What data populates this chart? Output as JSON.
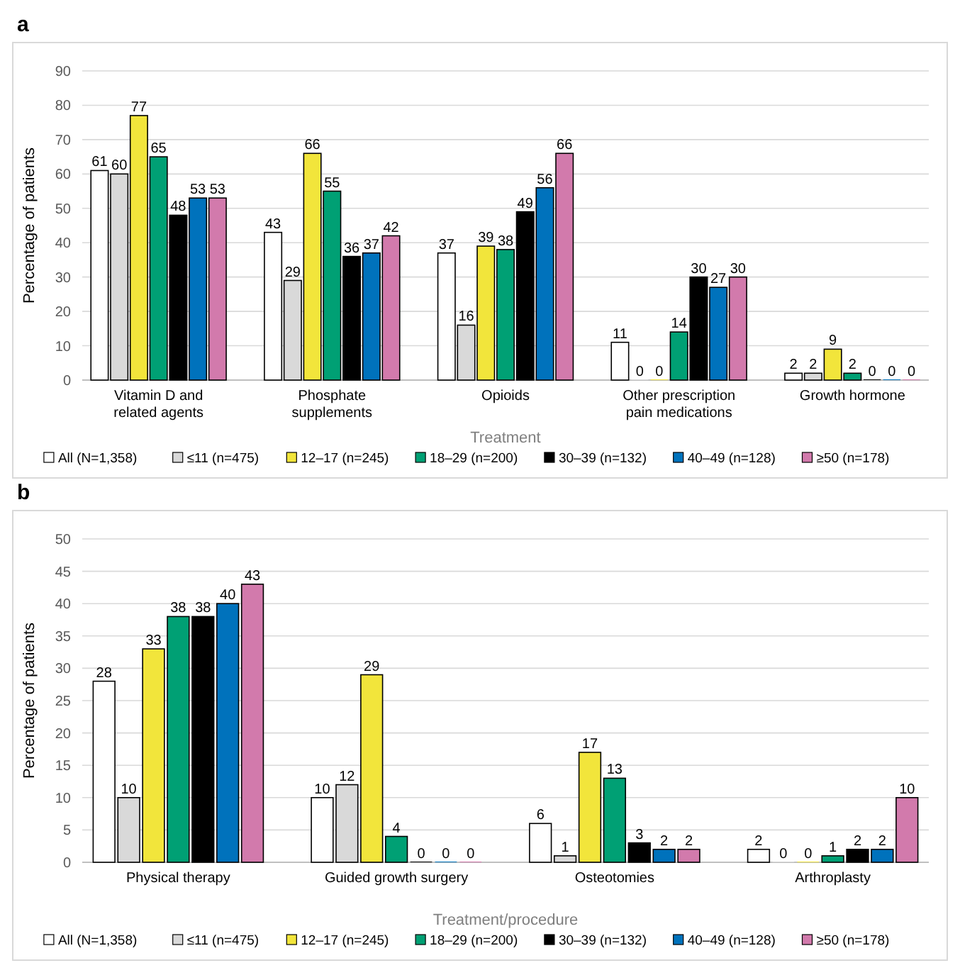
{
  "chart_data": [
    {
      "type": "bar",
      "title": "a",
      "xlabel": "Treatment",
      "ylabel": "Percentage of patients",
      "categories": [
        "Vitamin D and related agents",
        "Phosphate supplements",
        "Opioids",
        "Other prescription pain medications",
        "Growth hormone"
      ],
      "ylim": [
        0,
        90
      ],
      "yticks": [
        0,
        10,
        20,
        30,
        40,
        50,
        60,
        70,
        80,
        90
      ],
      "grid": "y",
      "legend": "bottom",
      "data_labels": true,
      "series": [
        {
          "name": "All (N=1,358)",
          "color": "#ffffff",
          "values": [
            61,
            43,
            37,
            11,
            2
          ]
        },
        {
          "name": "≤11 (n=475)",
          "color": "#d9d9d9",
          "values": [
            60,
            29,
            16,
            0,
            2
          ]
        },
        {
          "name": "12–17 (n=245)",
          "color": "#f2e53b",
          "values": [
            77,
            66,
            39,
            0,
            9
          ]
        },
        {
          "name": "18–29 (n=200)",
          "color": "#00a074",
          "values": [
            65,
            55,
            38,
            14,
            2
          ]
        },
        {
          "name": "30–39 (n=132)",
          "color": "#000000",
          "values": [
            48,
            36,
            49,
            30,
            0
          ]
        },
        {
          "name": "40–49 (n=128)",
          "color": "#0072bc",
          "values": [
            53,
            37,
            56,
            27,
            0
          ]
        },
        {
          "name": "≥50 (n=178)",
          "color": "#d27aac",
          "values": [
            53,
            42,
            66,
            30,
            0
          ]
        }
      ]
    },
    {
      "type": "bar",
      "title": "b",
      "xlabel": "Treatment/procedure",
      "ylabel": "Percentage of patients",
      "categories": [
        "Physical therapy",
        "Guided growth surgery",
        "Osteotomies",
        "Arthroplasty"
      ],
      "ylim": [
        0,
        50
      ],
      "yticks": [
        0,
        5,
        10,
        15,
        20,
        25,
        30,
        35,
        40,
        45,
        50
      ],
      "grid": "y",
      "legend": "bottom",
      "data_labels": true,
      "series": [
        {
          "name": "All (N=1,358)",
          "color": "#ffffff",
          "values": [
            28,
            10,
            6,
            2
          ]
        },
        {
          "name": "≤11 (n=475)",
          "color": "#d9d9d9",
          "values": [
            10,
            12,
            1,
            0
          ]
        },
        {
          "name": "12–17 (n=245)",
          "color": "#f2e53b",
          "values": [
            33,
            29,
            17,
            0
          ]
        },
        {
          "name": "18–29 (n=200)",
          "color": "#00a074",
          "values": [
            38,
            4,
            13,
            1
          ]
        },
        {
          "name": "30–39 (n=132)",
          "color": "#000000",
          "values": [
            38,
            0,
            3,
            2
          ]
        },
        {
          "name": "40–49 (n=128)",
          "color": "#0072bc",
          "values": [
            40,
            0,
            2,
            2
          ]
        },
        {
          "name": "≥50 (n=178)",
          "color": "#d27aac",
          "values": [
            43,
            0,
            2,
            10
          ]
        }
      ]
    }
  ]
}
